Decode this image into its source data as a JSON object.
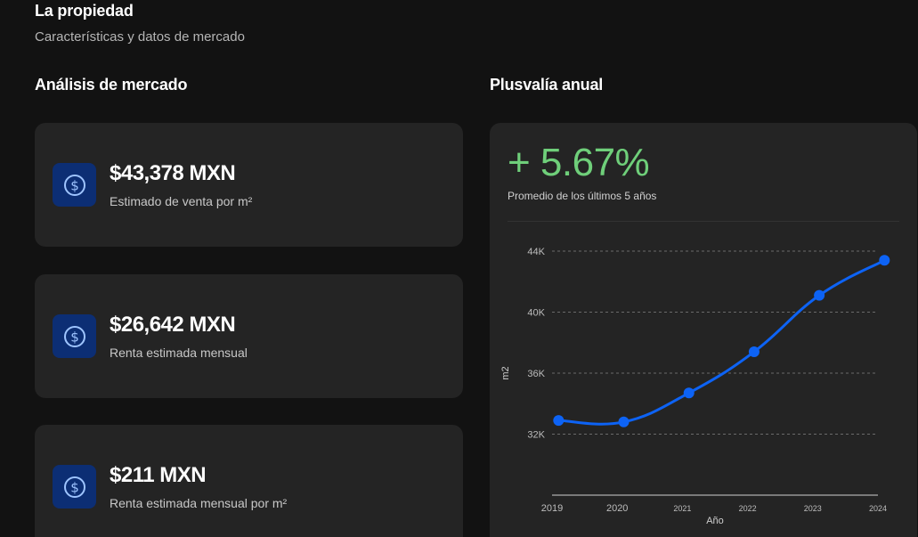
{
  "header": {
    "title": "La propiedad",
    "subtitle": "Características y datos de mercado"
  },
  "market": {
    "title": "Análisis de mercado",
    "cards": [
      {
        "value": "$43,378 MXN",
        "label": "Estimado de venta por m²",
        "icon": "dollar-coin-icon"
      },
      {
        "value": "$26,642 MXN",
        "label": "Renta estimada mensual",
        "icon": "dollar-coin-icon"
      },
      {
        "value": "$211 MXN",
        "label": "Renta estimada mensual por m²",
        "icon": "dollar-coin-icon"
      }
    ]
  },
  "plusvalia": {
    "title": "Plusvalía anual",
    "growth": "+ 5.67%",
    "growth_note": "Promedio de los últimos 5 años"
  },
  "colors": {
    "accent_blue": "#0d63f5",
    "growth_green": "#6fcf7a",
    "icon_bg": "#0c2e74"
  },
  "chart_data": {
    "type": "line",
    "x": [
      2019.0,
      2020.0,
      2021.0,
      2022.0,
      2023.0,
      2024.0
    ],
    "x_points": [
      2019.1,
      2020.1,
      2021.1,
      2022.1,
      2023.1,
      2024.1
    ],
    "values": [
      32900,
      32800,
      34700,
      37400,
      41100,
      43400
    ],
    "x_tick_labels": [
      "2019",
      "2020",
      "2021",
      "2022",
      "2023",
      "2024"
    ],
    "y_ticks": [
      32000,
      36000,
      40000,
      44000
    ],
    "y_tick_labels": [
      "32K",
      "36K",
      "40K",
      "44K"
    ],
    "xlabel": "Año",
    "ylabel": "m2",
    "ylim": [
      28000,
      44000
    ],
    "grid": true
  }
}
